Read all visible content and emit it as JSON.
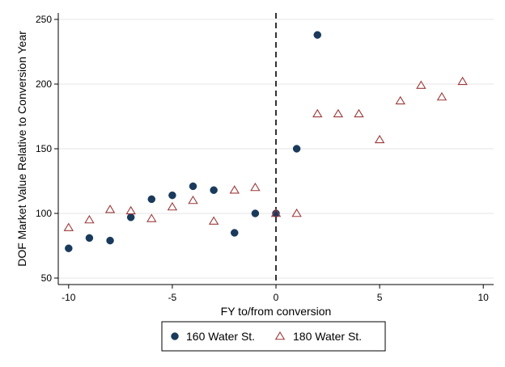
{
  "chart_data": {
    "type": "scatter",
    "title": "",
    "xlabel": "FY to/from conversion",
    "ylabel": "DOF Market Value Relative to Conversion Year",
    "xlim": [
      -10.5,
      10.5
    ],
    "ylim": [
      45,
      255
    ],
    "x_ticks": [
      -10,
      -5,
      0,
      5,
      10
    ],
    "y_ticks": [
      50,
      100,
      150,
      200,
      250
    ],
    "x_tick_labels": [
      "-10",
      "-5",
      "0",
      "5",
      "10"
    ],
    "y_tick_labels": [
      "50",
      "100",
      "150",
      "200",
      "250"
    ],
    "grid": "horizontal",
    "reference_line": {
      "axis": "x",
      "value": 0,
      "style": "dashed"
    },
    "legend": {
      "position": "bottom"
    },
    "series": [
      {
        "name": "160 Water St.",
        "marker": "filled-circle",
        "color": "#1a3a5c",
        "points": [
          {
            "x": -10,
            "y": 73
          },
          {
            "x": -9,
            "y": 81
          },
          {
            "x": -8,
            "y": 79
          },
          {
            "x": -7,
            "y": 97
          },
          {
            "x": -6,
            "y": 111
          },
          {
            "x": -5,
            "y": 114
          },
          {
            "x": -4,
            "y": 121
          },
          {
            "x": -3,
            "y": 118
          },
          {
            "x": -2,
            "y": 85
          },
          {
            "x": -1,
            "y": 100
          },
          {
            "x": 0,
            "y": 100
          },
          {
            "x": 1,
            "y": 150
          },
          {
            "x": 2,
            "y": 238
          }
        ]
      },
      {
        "name": "180 Water St.",
        "marker": "hollow-triangle",
        "color": "#9c3a3a",
        "points": [
          {
            "x": -10,
            "y": 89
          },
          {
            "x": -9,
            "y": 95
          },
          {
            "x": -8,
            "y": 103
          },
          {
            "x": -7,
            "y": 102
          },
          {
            "x": -6,
            "y": 96
          },
          {
            "x": -5,
            "y": 105
          },
          {
            "x": -4,
            "y": 110
          },
          {
            "x": -3,
            "y": 94
          },
          {
            "x": -2,
            "y": 118
          },
          {
            "x": -1,
            "y": 120
          },
          {
            "x": 0,
            "y": 100
          },
          {
            "x": 1,
            "y": 100
          },
          {
            "x": 2,
            "y": 177
          },
          {
            "x": 3,
            "y": 177
          },
          {
            "x": 4,
            "y": 177
          },
          {
            "x": 5,
            "y": 157
          },
          {
            "x": 6,
            "y": 187
          },
          {
            "x": 7,
            "y": 199
          },
          {
            "x": 8,
            "y": 190
          },
          {
            "x": 9,
            "y": 202
          }
        ]
      }
    ]
  }
}
